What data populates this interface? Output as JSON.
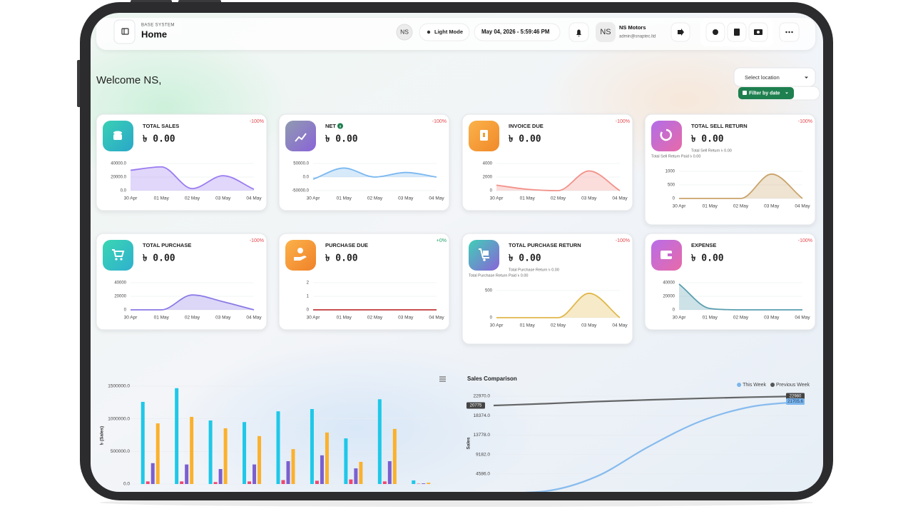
{
  "header": {
    "section": "BASE SYSTEM",
    "title": "Home",
    "badge": "NS",
    "mode": "Light Mode",
    "datetime": "May 04, 2026 - 5:59:46 PM",
    "user": {
      "initials": "NS",
      "name": "NS Motors",
      "email": "admin@snaptec.ltd"
    }
  },
  "welcome": "Welcome NS,",
  "location": "Select location",
  "filter": "Filter by date",
  "cards": [
    {
      "title": "TOTAL SALES",
      "amount": "৳ 0.00",
      "change": "-100%",
      "change_color": "#e5484d"
    },
    {
      "title": "NET",
      "amount": "৳ 0.00",
      "change": "-100%",
      "change_color": "#e5484d"
    },
    {
      "title": "INVOICE DUE",
      "amount": "৳ 0.00",
      "change": "-100%",
      "change_color": "#e5484d"
    },
    {
      "title": "TOTAL SELL RETURN",
      "amount": "৳ 0.00",
      "change": "-100%",
      "change_color": "#e5484d",
      "notes": [
        "Total Sell Return ৳ 0.00",
        "Total Sell Return Paid ৳ 0.00"
      ]
    },
    {
      "title": "TOTAL PURCHASE",
      "amount": "৳ 0.00",
      "change": "-100%",
      "change_color": "#e5484d"
    },
    {
      "title": "PURCHASE DUE",
      "amount": "৳ 0.00",
      "change": "+0%",
      "change_color": "#22a06b"
    },
    {
      "title": "TOTAL PURCHASE RETURN",
      "amount": "৳ 0.00",
      "change": "-100%",
      "change_color": "#e5484d",
      "notes": [
        "Total Purchase Return ৳ 0.00",
        "Total Purchase Return Paid ৳ 0.00"
      ]
    },
    {
      "title": "EXPENSE",
      "amount": "৳ 0.00",
      "change": "-100%",
      "change_color": "#e5484d"
    }
  ],
  "chart_data": [
    {
      "type": "area",
      "categories": [
        "30 Apr",
        "01 May",
        "02 May",
        "03 May",
        "04 May"
      ],
      "values": [
        30000,
        35000,
        3000,
        22000,
        2000
      ],
      "color": "#9b7cf0",
      "ylim": [
        0,
        40000
      ],
      "yticks": [
        {
          "value": 0,
          "label": "0.0"
        },
        {
          "value": 20000,
          "label": "20000.0"
        },
        {
          "value": 40000,
          "label": "40000.0"
        }
      ]
    },
    {
      "type": "area",
      "categories": [
        "30 Apr",
        "01 May",
        "02 May",
        "03 May",
        "04 May"
      ],
      "values": [
        -8000,
        33000,
        0,
        17000,
        0
      ],
      "color": "#7ab8f0",
      "ylim": [
        -50000,
        50000
      ],
      "yticks": [
        {
          "value": -50000,
          "label": "-50000.0"
        },
        {
          "value": 0,
          "label": "0.0"
        },
        {
          "value": 50000,
          "label": "50000.0"
        }
      ]
    },
    {
      "type": "area",
      "categories": [
        "30 Apr",
        "01 May",
        "02 May",
        "03 May",
        "04 May"
      ],
      "values": [
        800,
        200,
        0,
        2900,
        0
      ],
      "color": "#f2928a",
      "ylim": [
        0,
        4000
      ],
      "yticks": [
        0,
        2000,
        4000
      ]
    },
    {
      "type": "area",
      "categories": [
        "30 Apr",
        "01 May",
        "02 May",
        "03 May",
        "04 May"
      ],
      "values": [
        0,
        0,
        0,
        900,
        0
      ],
      "color": "#c9a36a",
      "ylim": [
        0,
        1000
      ],
      "yticks": [
        0,
        500,
        1000
      ]
    },
    {
      "type": "area",
      "categories": [
        "30 Apr",
        "01 May",
        "02 May",
        "03 May",
        "04 May"
      ],
      "values": [
        0,
        0,
        22000,
        12000,
        0
      ],
      "color": "#8a7ae6",
      "ylim": [
        0,
        40000
      ],
      "yticks": [
        0,
        20000,
        40000
      ]
    },
    {
      "type": "area",
      "categories": [
        "30 Apr",
        "01 May",
        "02 May",
        "03 May",
        "04 May"
      ],
      "values": [
        0,
        0,
        0,
        0,
        0
      ],
      "color": "#c0393b",
      "ylim": [
        0,
        2
      ],
      "yticks": [
        0,
        1,
        2
      ]
    },
    {
      "type": "area",
      "categories": [
        "30 Apr",
        "01 May",
        "02 May",
        "03 May",
        "04 May"
      ],
      "values": [
        0,
        0,
        0,
        450,
        0
      ],
      "color": "#e0b84a",
      "ylim": [
        0,
        500
      ],
      "yticks": [
        0,
        500
      ]
    },
    {
      "type": "area",
      "categories": [
        "30 Apr",
        "01 May",
        "02 May",
        "03 May",
        "04 May"
      ],
      "values": [
        38000,
        2000,
        0,
        0,
        0
      ],
      "color": "#5a9eb0",
      "ylim": [
        0,
        40000
      ],
      "yticks": [
        0,
        20000,
        40000
      ]
    },
    {
      "type": "bar",
      "y_label": "৳ (Sales)",
      "categories": [
        null,
        null,
        null,
        null,
        null,
        null,
        null,
        null,
        null
      ],
      "series": [
        {
          "color": "#1ec8e8",
          "values": [
            1260000,
            1470000,
            975000,
            950000,
            1115000,
            1150000,
            700000,
            1300000,
            55000
          ]
        },
        {
          "color": "#f0476f",
          "values": [
            40000,
            40000,
            30000,
            40000,
            60000,
            50000,
            70000,
            40000,
            5000
          ]
        },
        {
          "color": "#7b5fd0",
          "values": [
            320000,
            300000,
            230000,
            300000,
            350000,
            440000,
            240000,
            350000,
            10000
          ]
        },
        {
          "color": "#fbb12c",
          "values": [
            930000,
            1030000,
            855000,
            735000,
            535000,
            790000,
            340000,
            845000,
            20000
          ]
        }
      ],
      "ylim": [
        0,
        1500000
      ],
      "yticks": [
        {
          "value": 0,
          "label": "0.0"
        },
        {
          "value": 500000,
          "label": "500000.0"
        },
        {
          "value": 1000000,
          "label": "1000000.0"
        },
        {
          "value": 1500000,
          "label": "1500000.0"
        }
      ]
    },
    {
      "type": "line",
      "title": "Sales Comparison",
      "y_label": "Sales",
      "legend": "top-right",
      "categories": [
        null,
        null,
        null,
        null,
        null,
        null,
        null
      ],
      "series": [
        {
          "name": "This Week",
          "color": "#7cb5ec",
          "values": [
            0,
            500,
            4000,
            11000,
            17000,
            20500,
            21705.6
          ]
        },
        {
          "name": "Previous Week",
          "color": "#555555",
          "values": [
            20775,
            21200,
            21700,
            22100,
            22450,
            22750,
            22980
          ]
        }
      ],
      "ylim": [
        0,
        22970
      ],
      "yticks": [
        {
          "value": 4586,
          "label": "4586.0"
        },
        {
          "value": 9182,
          "label": "9182.0"
        },
        {
          "value": 13778,
          "label": "13778.0"
        },
        {
          "value": 18374,
          "label": "18374.0"
        },
        {
          "value": 22970,
          "label": "22970.0"
        }
      ]
    }
  ]
}
